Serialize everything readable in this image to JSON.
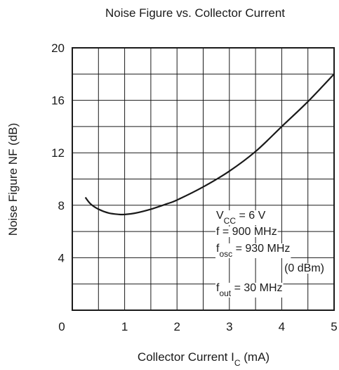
{
  "chart_data": {
    "type": "line",
    "title": "Noise Figure vs. Collector Current",
    "xlabel": {
      "main": "Collector Current  I",
      "sub": "C",
      "unit": "  (mA)"
    },
    "ylabel": "Noise Figure  NF  (dB)",
    "xlim": [
      0,
      5
    ],
    "ylim": [
      0,
      20
    ],
    "x_ticks": [
      {
        "value": 0,
        "label": "0"
      },
      {
        "value": 1,
        "label": "1"
      },
      {
        "value": 2,
        "label": "2"
      },
      {
        "value": 3,
        "label": "3"
      },
      {
        "value": 4,
        "label": "4"
      },
      {
        "value": 5,
        "label": "5"
      }
    ],
    "y_ticks": [
      {
        "value": 4,
        "label": "4"
      },
      {
        "value": 8,
        "label": "8"
      },
      {
        "value": 12,
        "label": "12"
      },
      {
        "value": 16,
        "label": "16"
      },
      {
        "value": 20,
        "label": "20"
      }
    ],
    "grid": {
      "x_step": 0.5,
      "y_step": 2
    },
    "series": [
      {
        "x": [
          0.25,
          0.35,
          0.5,
          0.7,
          0.9,
          1.0,
          1.2,
          1.5,
          1.8,
          2.0,
          2.5,
          3.0,
          3.5,
          4.0,
          4.5,
          5.0
        ],
        "y": [
          8.6,
          8.1,
          7.7,
          7.4,
          7.3,
          7.3,
          7.4,
          7.7,
          8.1,
          8.4,
          9.4,
          10.6,
          12.1,
          14.0,
          15.9,
          18.0
        ]
      }
    ],
    "annotation": [
      {
        "main": "V",
        "sub": "CC",
        "rest": " = 6 V"
      },
      {
        "main": "f = 900 MHz",
        "sub": "",
        "rest": ""
      },
      {
        "main": "f",
        "sub": "osc",
        "rest": " = 930 MHz"
      },
      {
        "main": "(0 dBm)",
        "sub": "",
        "rest": ""
      },
      {
        "main": "f",
        "sub": "out",
        "rest": " = 30 MHz"
      }
    ],
    "colors": {
      "line": "#1a1a1a",
      "grid": "#1a1a1a",
      "background": "#ffffff"
    }
  }
}
